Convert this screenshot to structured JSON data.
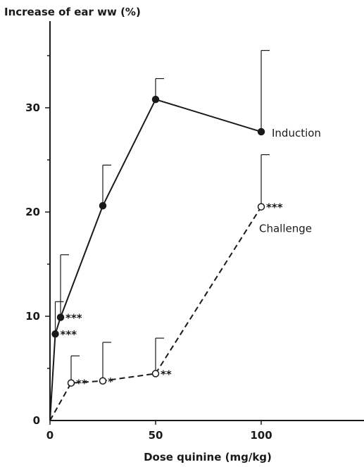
{
  "chart_data": {
    "type": "line",
    "ylabel": "Increase of ear ww (%)",
    "xlabel": "Dose quinine (mg/kg)",
    "xlim": [
      0,
      150
    ],
    "ylim": [
      0,
      38
    ],
    "x_ticks": [
      0,
      50,
      100
    ],
    "x_tick_labels": [
      "0",
      "50",
      "100"
    ],
    "y_ticks": [
      0,
      10,
      20,
      30
    ],
    "y_tick_labels": [
      "0",
      "10",
      "20",
      "30"
    ],
    "grid": false,
    "legend": "none",
    "series": [
      {
        "name": "Induction",
        "marker": "filled-circle",
        "line": "solid",
        "x": [
          0,
          2.5,
          5,
          25,
          50,
          100
        ],
        "y": [
          0,
          8.3,
          9.9,
          20.6,
          30.8,
          27.7
        ],
        "error_upper": [
          null,
          11.4,
          15.9,
          24.5,
          32.8,
          35.5
        ],
        "significance": [
          "",
          "***",
          "***",
          "",
          "",
          ""
        ]
      },
      {
        "name": "Challenge",
        "marker": "open-circle",
        "line": "dashed",
        "x": [
          0,
          10,
          25,
          50,
          100
        ],
        "y": [
          0,
          3.6,
          3.8,
          4.5,
          20.5
        ],
        "error_upper": [
          null,
          6.2,
          7.5,
          7.9,
          25.5
        ],
        "significance": [
          "",
          "**",
          "*",
          "**",
          "***"
        ]
      }
    ]
  }
}
